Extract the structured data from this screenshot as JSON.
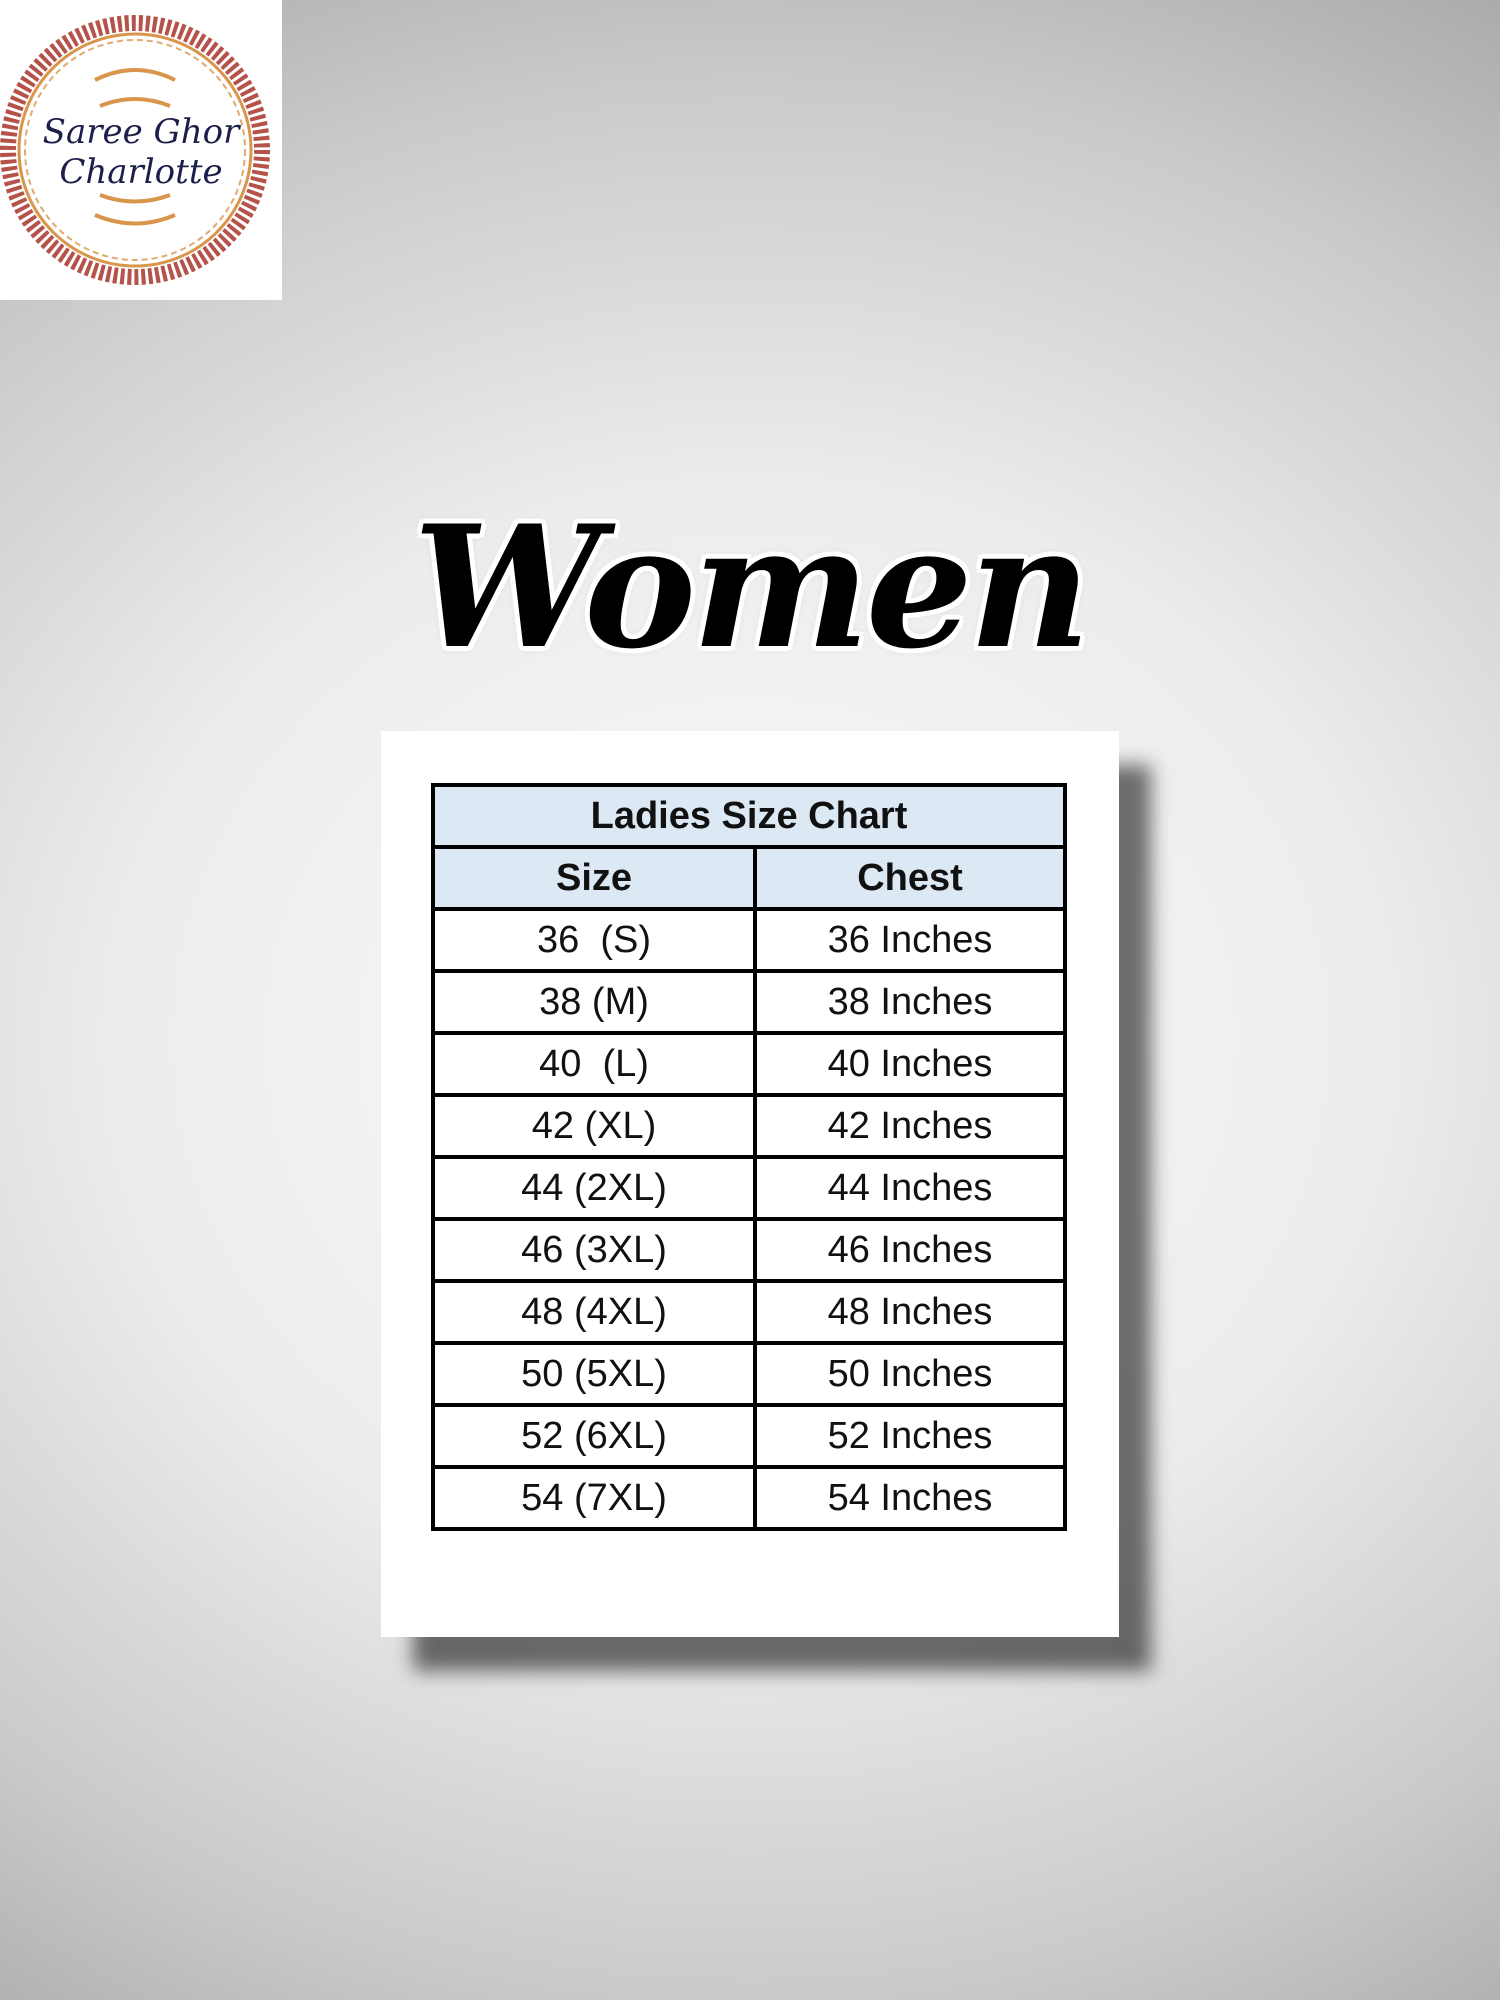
{
  "logo": {
    "text_line1": "Saree Ghor",
    "text_line2": "Charlotte",
    "colors": {
      "ornament_outer": "#b5524a",
      "ornament_inner": "#d9954a",
      "text": "#1c1f4a"
    }
  },
  "title": "Women",
  "size_chart": {
    "title": "Ladies Size Chart",
    "columns": [
      "Size",
      "Chest"
    ],
    "rows": [
      [
        "36  (S)",
        "36 Inches"
      ],
      [
        "38 (M)",
        "38 Inches"
      ],
      [
        "40  (L)",
        "40 Inches"
      ],
      [
        "42 (XL)",
        "42 Inches"
      ],
      [
        "44 (2XL)",
        "44 Inches"
      ],
      [
        "46 (3XL)",
        "46 Inches"
      ],
      [
        "48 (4XL)",
        "48 Inches"
      ],
      [
        "50 (5XL)",
        "50 Inches"
      ],
      [
        "52 (6XL)",
        "52 Inches"
      ],
      [
        "54 (7XL)",
        "54 Inches"
      ]
    ],
    "header_color": "#dde8f5"
  }
}
